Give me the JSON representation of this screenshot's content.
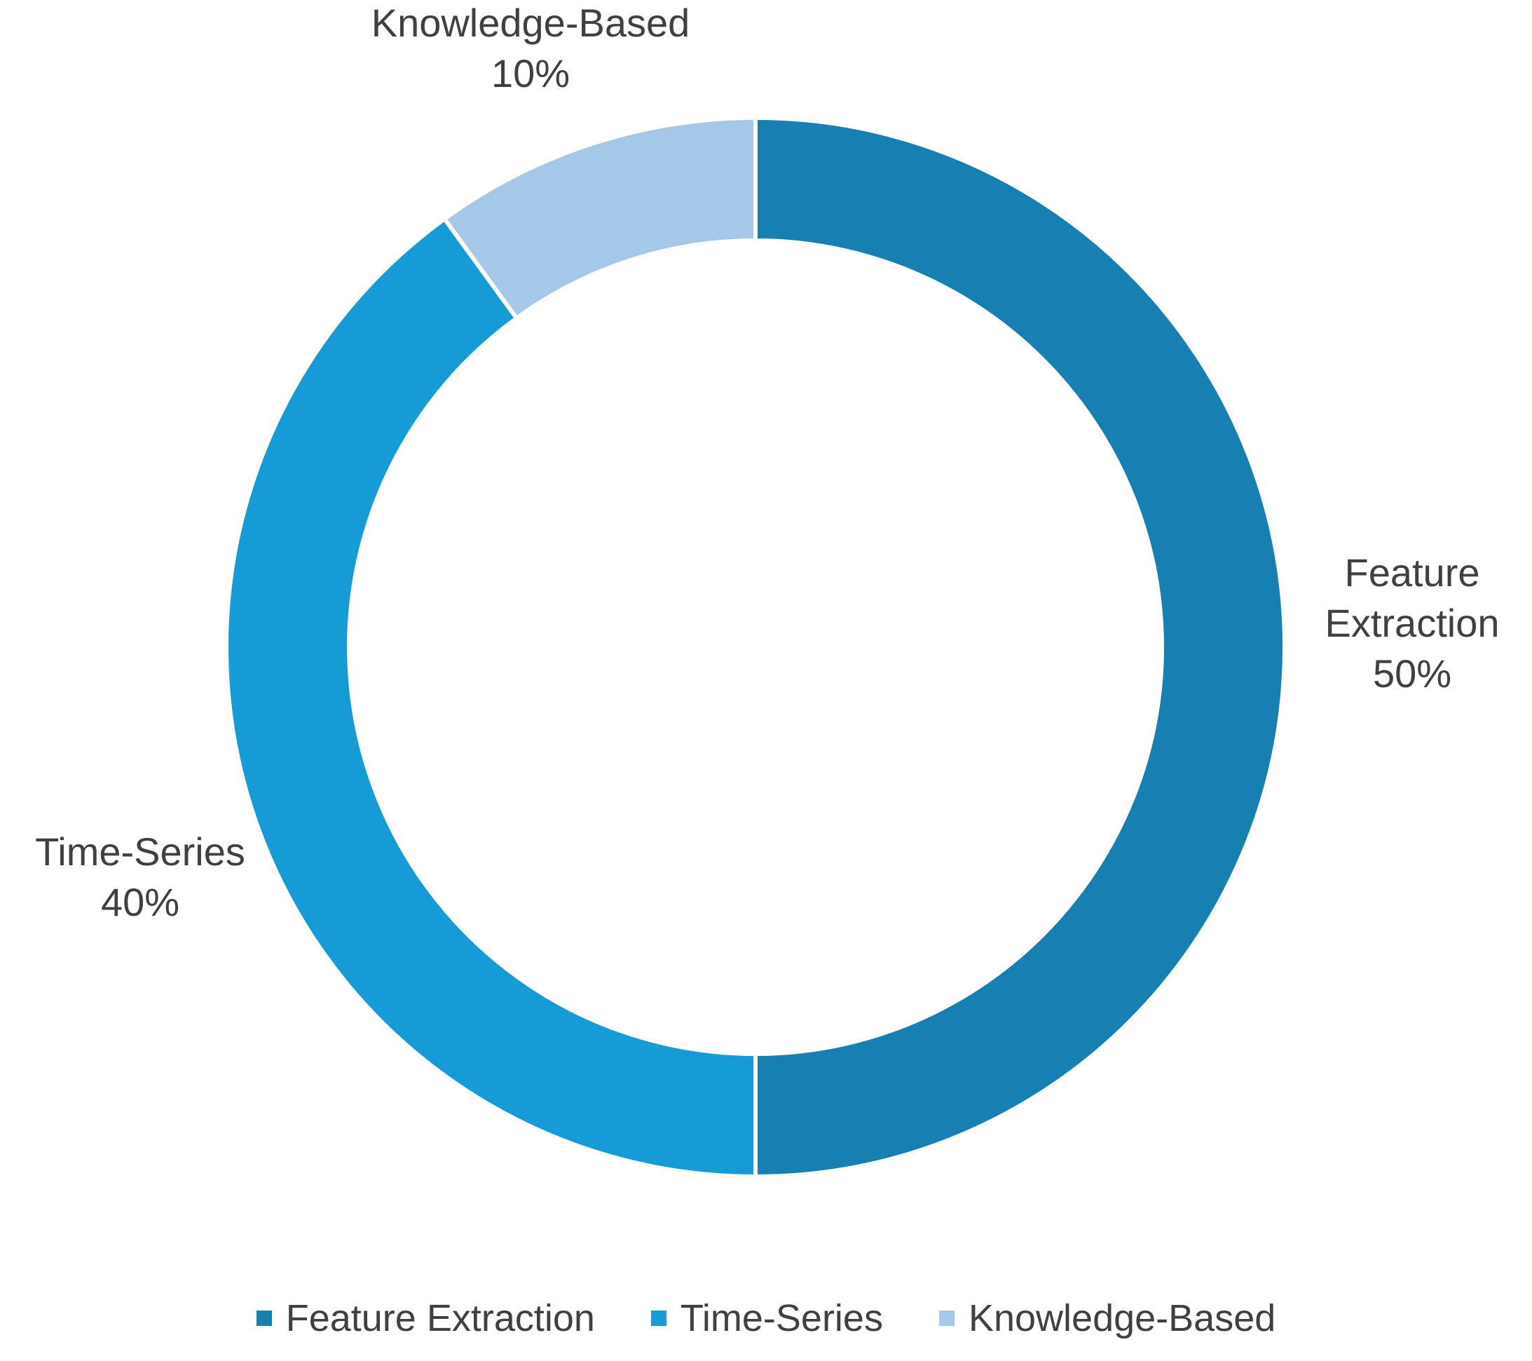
{
  "chart_data": {
    "type": "pie",
    "variant": "donut",
    "title": "",
    "slices": [
      {
        "label": "Feature Extraction",
        "value": 50,
        "value_label": "50%",
        "color": "#177FB2"
      },
      {
        "label": "Time-Series",
        "value": 40,
        "value_label": "40%",
        "color": "#169BD7"
      },
      {
        "label": "Knowledge-Based",
        "value": 10,
        "value_label": "10%",
        "color": "#A5C8E8"
      }
    ],
    "data_labels": [
      {
        "lines": [
          "Feature",
          "Extraction",
          "50%"
        ]
      },
      {
        "lines": [
          "Time-Series",
          "40%"
        ]
      },
      {
        "lines": [
          "Knowledge-Based",
          "10%"
        ]
      }
    ],
    "legend": {
      "position": "bottom",
      "entries": [
        "Feature Extraction",
        "Time-Series",
        "Knowledge-Based"
      ]
    },
    "start_angle": "12 o'clock",
    "direction": "clockwise",
    "label_color": "#404040"
  }
}
